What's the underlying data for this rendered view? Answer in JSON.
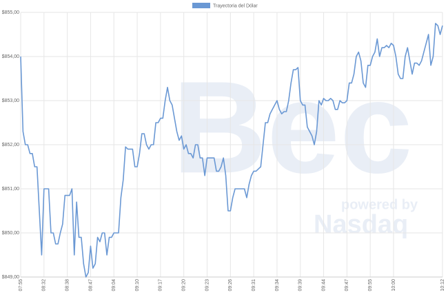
{
  "chart_data": {
    "type": "line",
    "series": [
      {
        "name": "Trayectoria del Dólar",
        "color": "#6a98d4",
        "values": [
          854.0,
          852.3,
          852.0,
          852.0,
          851.8,
          851.8,
          851.5,
          851.5,
          850.5,
          849.5,
          851.0,
          851.0,
          851.0,
          850.0,
          850.0,
          849.75,
          849.75,
          850.0,
          850.2,
          850.85,
          850.85,
          850.85,
          851.0,
          849.5,
          850.7,
          849.9,
          849.9,
          849.3,
          849.0,
          849.1,
          849.7,
          849.2,
          849.3,
          849.9,
          849.8,
          850.0,
          850.0,
          849.5,
          849.9,
          849.9,
          850.0,
          850.0,
          850.0,
          850.8,
          851.2,
          851.95,
          851.9,
          851.9,
          851.9,
          851.5,
          851.5,
          851.8,
          852.25,
          852.25,
          852.0,
          851.9,
          852.0,
          852.0,
          852.5,
          852.5,
          852.6,
          852.6,
          853.0,
          853.3,
          853.0,
          852.9,
          852.6,
          852.3,
          852.1,
          852.2,
          851.9,
          852.0,
          851.8,
          851.8,
          851.7,
          852.0,
          852.0,
          851.7,
          851.7,
          851.3,
          851.7,
          851.7,
          851.7,
          851.7,
          851.4,
          851.4,
          851.5,
          851.7,
          851.3,
          850.5,
          850.5,
          850.8,
          851.0,
          851.0,
          851.0,
          851.0,
          851.0,
          850.8,
          851.1,
          851.3,
          851.4,
          851.4,
          851.45,
          851.5,
          852.0,
          852.5,
          852.5,
          852.7,
          852.8,
          852.9,
          853.0,
          852.8,
          852.7,
          852.75,
          852.75,
          853.0,
          853.4,
          853.7,
          853.7,
          853.75,
          853.0,
          852.9,
          852.9,
          852.4,
          852.3,
          852.2,
          852.0,
          852.3,
          853.0,
          852.9,
          853.05,
          853.0,
          853.0,
          853.05,
          853.0,
          852.8,
          852.8,
          853.0,
          852.95,
          852.95,
          853.0,
          853.4,
          853.4,
          853.6,
          854.0,
          854.1,
          853.9,
          853.4,
          853.3,
          853.8,
          853.8,
          854.0,
          854.1,
          854.4,
          854.0,
          854.2,
          854.2,
          854.25,
          854.2,
          854.3,
          854.25,
          854.0,
          853.6,
          853.5,
          853.5,
          854.0,
          854.2,
          853.9,
          853.6,
          853.85,
          853.85,
          853.8,
          853.9,
          854.1,
          854.3,
          854.5,
          853.8,
          854.0,
          854.75,
          854.7,
          854.5,
          854.7
        ]
      }
    ],
    "categories": [
      "07:55",
      null,
      null,
      null,
      null,
      null,
      null,
      null,
      null,
      null,
      "08:32",
      null,
      null,
      null,
      null,
      null,
      null,
      null,
      null,
      null,
      "08:38",
      null,
      null,
      null,
      null,
      null,
      null,
      null,
      null,
      null,
      "08:47",
      null,
      null,
      null,
      null,
      null,
      null,
      null,
      null,
      null,
      "09:04",
      null,
      null,
      null,
      null,
      null,
      null,
      null,
      null,
      null,
      "09:10",
      null,
      null,
      null,
      null,
      null,
      null,
      null,
      null,
      null,
      "09:17",
      null,
      null,
      null,
      null,
      null,
      null,
      null,
      null,
      null,
      "09:20",
      null,
      null,
      null,
      null,
      null,
      null,
      null,
      null,
      null,
      "09:23",
      null,
      null,
      null,
      null,
      null,
      null,
      null,
      null,
      null,
      "09:26",
      null,
      null,
      null,
      null,
      null,
      null,
      null,
      null,
      null,
      "09:31",
      null,
      null,
      null,
      null,
      null,
      null,
      null,
      null,
      null,
      "09:34",
      null,
      null,
      null,
      null,
      null,
      null,
      null,
      null,
      null,
      "09:39",
      null,
      null,
      null,
      null,
      null,
      null,
      null,
      null,
      null,
      "09:44",
      null,
      null,
      null,
      null,
      null,
      null,
      null,
      null,
      null,
      "09:47",
      null,
      null,
      null,
      null,
      null,
      null,
      null,
      null,
      null,
      "09:55",
      null,
      null,
      null,
      null,
      null,
      null,
      null,
      null,
      null,
      "10:00",
      null,
      null,
      null,
      null,
      null,
      null,
      null,
      null,
      null,
      null,
      null,
      null,
      null,
      null,
      null,
      null,
      null,
      null,
      null,
      null,
      "10:12"
    ],
    "ylim": [
      849,
      855
    ],
    "yticks": [
      {
        "value": 849,
        "label": "$849,00"
      },
      {
        "value": 850,
        "label": "$850,00"
      },
      {
        "value": 851,
        "label": "$851,00"
      },
      {
        "value": 852,
        "label": "$852,00"
      },
      {
        "value": 853,
        "label": "$853,00"
      },
      {
        "value": 854,
        "label": "$854,00"
      },
      {
        "value": 855,
        "label": "$855,00"
      }
    ],
    "grid": true,
    "legend": "top",
    "watermark": {
      "brand": "Bec",
      "tagline": "powered by",
      "provider": "Nasdaq"
    }
  }
}
